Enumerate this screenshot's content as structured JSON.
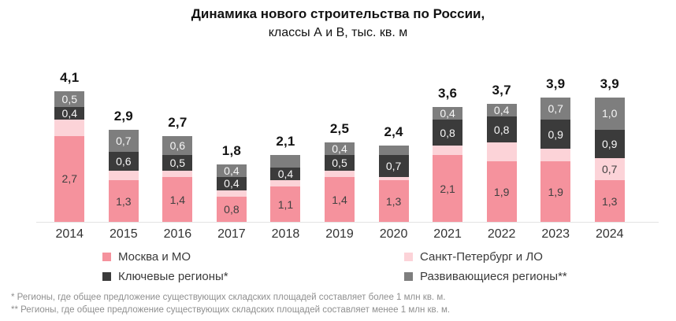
{
  "title": {
    "line1": "Динамика нового строительства по России,",
    "line2": "классы А и В, тыс. кв. м"
  },
  "colors": {
    "moscow": "#f5929d",
    "spb": "#fcd3d8",
    "key_regions": "#3b3b3b",
    "developing_regions": "#7e7e7e",
    "label_on_light": "#3f3f3f",
    "label_on_dark": "#f7f7f7",
    "axis_line": "#e4e4e4",
    "total_label": "#141414",
    "footnote": "#8f8f8f"
  },
  "chart_data": {
    "type": "bar",
    "stacked": true,
    "title": "Динамика нового строительства по России, классы А и В, тыс. кв. м",
    "xlabel": "",
    "ylabel": "тыс. кв. м",
    "grid": false,
    "y_axis_shown": false,
    "legend_position": "bottom",
    "categories": [
      "2014",
      "2015",
      "2016",
      "2017",
      "2018",
      "2019",
      "2020",
      "2021",
      "2022",
      "2023",
      "2024"
    ],
    "totals": [
      "4,1",
      "2,9",
      "2,7",
      "1,8",
      "2,1",
      "2,5",
      "2,4",
      "3,6",
      "3,7",
      "3,9",
      "3,9"
    ],
    "series": [
      {
        "name": "Москва и МО",
        "color_key": "moscow",
        "values": [
          2.7,
          1.3,
          1.4,
          0.8,
          1.1,
          1.4,
          1.3,
          2.1,
          1.9,
          1.9,
          1.3
        ],
        "labels": [
          "2,7",
          "1,3",
          "1,4",
          "0,8",
          "1,1",
          "1,4",
          "1,3",
          "2,1",
          "1,9",
          "1,9",
          "1,3"
        ],
        "label_color_key": "label_on_light"
      },
      {
        "name": "Санкт-Петербург и ЛО",
        "color_key": "spb",
        "values": [
          0.5,
          0.3,
          0.2,
          0.2,
          0.2,
          0.2,
          0.1,
          0.3,
          0.6,
          0.4,
          0.7
        ],
        "labels": [
          "",
          "",
          "",
          "",
          "",
          "",
          "",
          "",
          "",
          "",
          "0,7"
        ],
        "label_color_key": "label_on_light"
      },
      {
        "name": "Ключевые регионы*",
        "color_key": "key_regions",
        "values": [
          0.4,
          0.6,
          0.5,
          0.4,
          0.4,
          0.5,
          0.7,
          0.8,
          0.8,
          0.9,
          0.9
        ],
        "labels": [
          "0,4",
          "0,6",
          "0,5",
          "0,4",
          "0,4",
          "0,5",
          "0,7",
          "0,8",
          "0,8",
          "0,9",
          "0,9"
        ],
        "label_color_key": "label_on_dark"
      },
      {
        "name": "Развивающиеся регионы**",
        "color_key": "developing_regions",
        "values": [
          0.5,
          0.7,
          0.6,
          0.4,
          0.4,
          0.4,
          0.3,
          0.4,
          0.4,
          0.7,
          1.0
        ],
        "labels": [
          "0,5",
          "0,7",
          "0,6",
          "0,4",
          "",
          "0,4",
          "",
          "0,4",
          "0,4",
          "0,7",
          "1,0"
        ],
        "label_color_key": "label_on_dark"
      }
    ]
  },
  "legend": [
    {
      "label": "Москва и МО",
      "color_key": "moscow"
    },
    {
      "label": "Санкт-Петербург и ЛО",
      "color_key": "spb"
    },
    {
      "label": "Ключевые регионы*",
      "color_key": "key_regions"
    },
    {
      "label": "Развивающиеся регионы**",
      "color_key": "developing_regions"
    }
  ],
  "footnotes": [
    "* Регионы, где общее предложение существующих складских площадей составляет более 1 млн кв. м.",
    "** Регионы, где общее предложение существующих складских площадей составляет менее 1 млн кв. м."
  ]
}
